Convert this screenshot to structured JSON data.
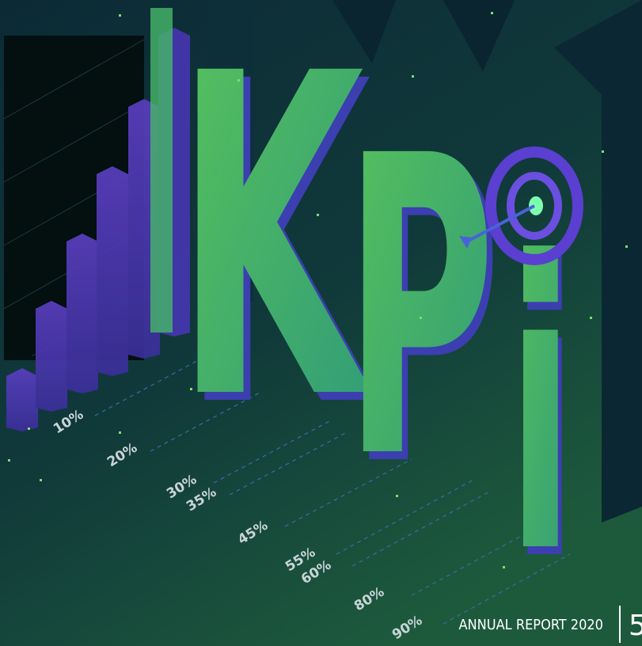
{
  "illustration": {
    "letters": [
      "K",
      "P",
      "i"
    ],
    "percent_labels": [
      "10%",
      "20%",
      "30%",
      "35%",
      "45%",
      "55%",
      "60%",
      "80%",
      "90%"
    ]
  },
  "footer": {
    "title": "ANNUAL REPORT 2020",
    "page_number": "5"
  }
}
